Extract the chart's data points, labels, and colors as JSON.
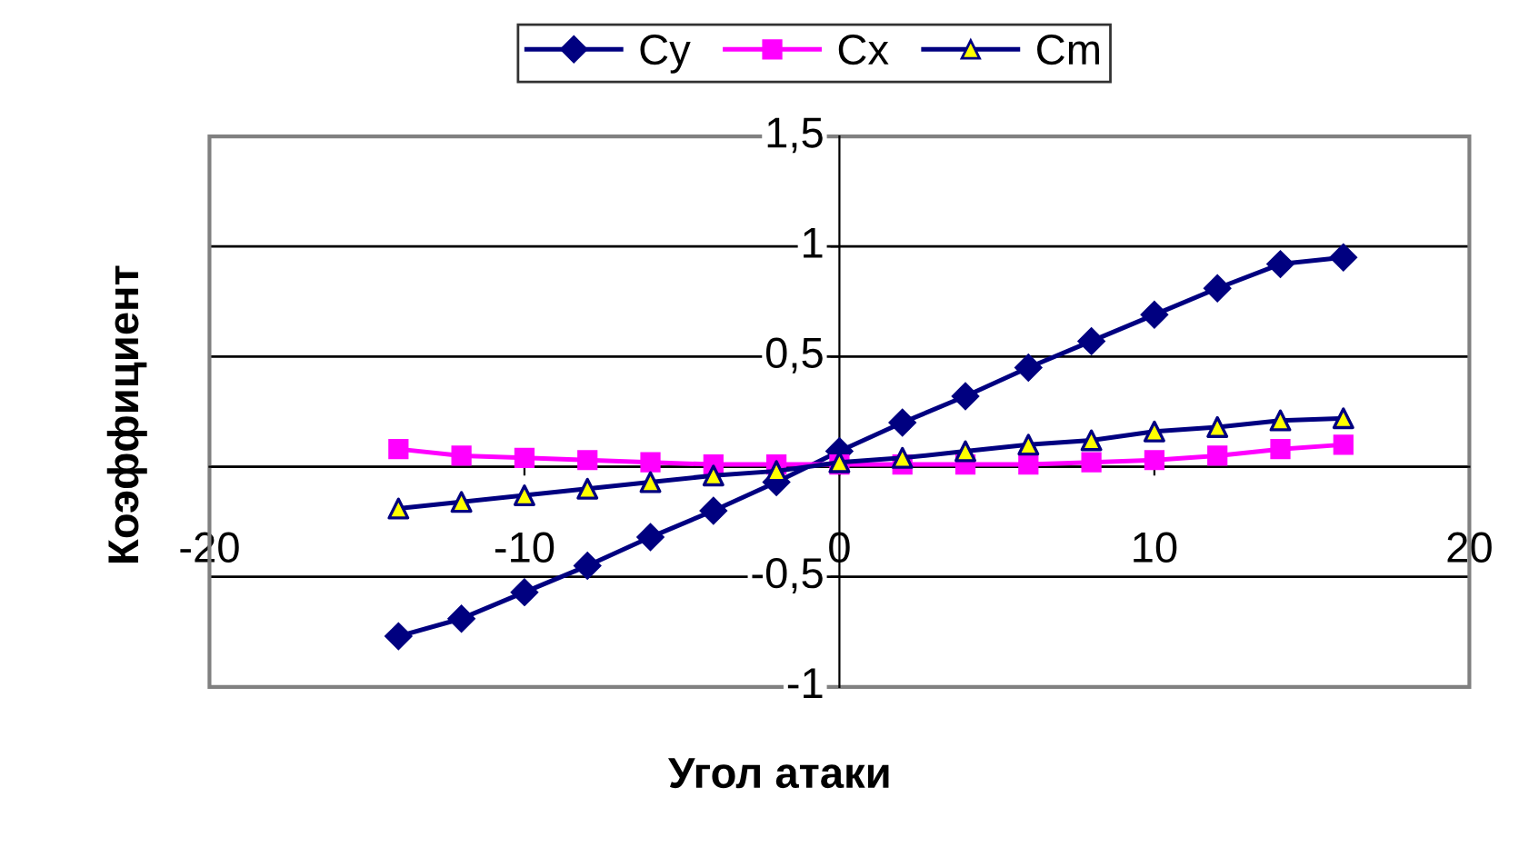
{
  "chart_data": {
    "type": "line",
    "xlabel": "Угол атаки",
    "ylabel": "Коэффициент",
    "x": [
      -14,
      -12,
      -10,
      -8,
      -6,
      -4,
      -2,
      0,
      2,
      4,
      6,
      8,
      10,
      12,
      14,
      16
    ],
    "series": [
      {
        "name": "Cy",
        "color": "#000080",
        "marker": "diamond",
        "values": [
          -0.77,
          -0.69,
          -0.57,
          -0.45,
          -0.32,
          -0.2,
          -0.07,
          0.07,
          0.2,
          0.32,
          0.45,
          0.57,
          0.69,
          0.81,
          0.92,
          0.95
        ]
      },
      {
        "name": "Cx",
        "color": "#ff00ff",
        "marker": "square",
        "values": [
          0.08,
          0.05,
          0.04,
          0.03,
          0.02,
          0.01,
          0.01,
          0.01,
          0.01,
          0.01,
          0.01,
          0.02,
          0.03,
          0.05,
          0.08,
          0.1
        ]
      },
      {
        "name": "Cm",
        "color": "#000080",
        "colors": [
          "#ffff00",
          "#ffff00",
          "#ffff00",
          "#ffff00",
          "#ffff00",
          "#ffff00",
          "#ffff00",
          "#ffff00",
          "#ffff00",
          "#ffff00",
          "#ffff00",
          "#ffff00",
          "#ffff00",
          "#ffff00",
          "#ffff00",
          "#ffff00"
        ],
        "marker": "triangle",
        "values": [
          -0.19,
          -0.16,
          -0.13,
          -0.1,
          -0.07,
          -0.04,
          -0.02,
          0.02,
          0.04,
          0.07,
          0.1,
          0.12,
          0.16,
          0.18,
          0.21,
          0.22
        ]
      }
    ],
    "xlim": [
      -20,
      20
    ],
    "xticks": [
      -20,
      -10,
      0,
      10,
      20
    ],
    "ylim": [
      -1,
      1.5
    ],
    "yticks": [
      {
        "value": -1,
        "label": "-1"
      },
      {
        "value": -0.5,
        "label": "-0,5"
      },
      {
        "value": 0,
        "label": null
      },
      {
        "value": 0.5,
        "label": "0,5"
      },
      {
        "value": 1,
        "label": "1"
      },
      {
        "value": 1.5,
        "label": "1,5"
      }
    ],
    "grid": "y",
    "legend": "top",
    "line_style": "solid"
  }
}
